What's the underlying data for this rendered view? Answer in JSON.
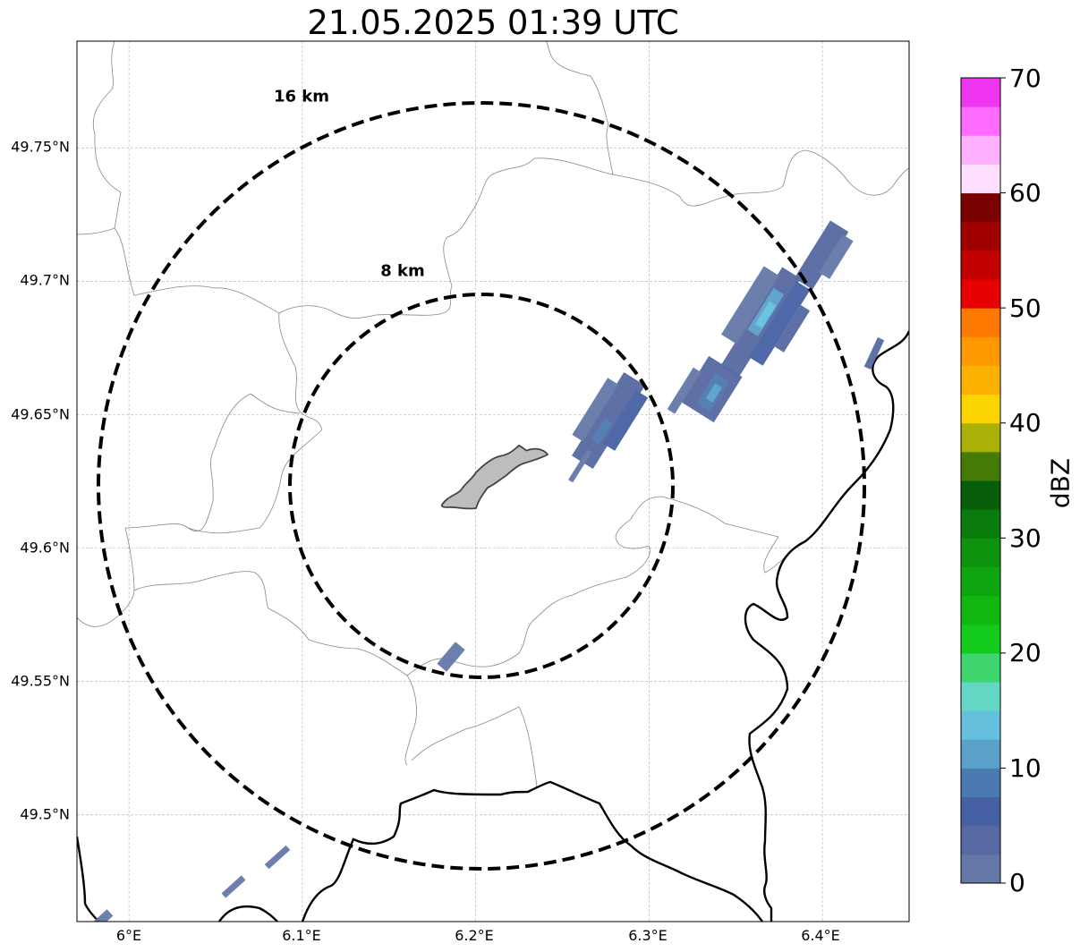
{
  "title": "21.05.2025 01:39 UTC",
  "map": {
    "lon_range": [
      5.97,
      6.45
    ],
    "lat_range": [
      49.46,
      49.79
    ],
    "lon_ticks": [
      {
        "value": 6.0,
        "label": "6°E"
      },
      {
        "value": 6.1,
        "label": "6.1°E"
      },
      {
        "value": 6.2,
        "label": "6.2°E"
      },
      {
        "value": 6.3,
        "label": "6.3°E"
      },
      {
        "value": 6.4,
        "label": "6.4°E"
      }
    ],
    "lat_ticks": [
      {
        "value": 49.5,
        "label": "49.5°N"
      },
      {
        "value": 49.55,
        "label": "49.55°N"
      },
      {
        "value": 49.6,
        "label": "49.6°N"
      },
      {
        "value": 49.65,
        "label": "49.65°N"
      },
      {
        "value": 49.7,
        "label": "49.7°N"
      },
      {
        "value": 49.75,
        "label": "49.75°N"
      }
    ],
    "gridlines": true,
    "range_rings": [
      {
        "label": "8 km",
        "radius_km": 8
      },
      {
        "label": "16 km",
        "radius_km": 16
      }
    ],
    "radar_center": {
      "lon": 6.202,
      "lat": 49.623
    }
  },
  "colorbar": {
    "label": "dBZ",
    "min": 0,
    "max": 70,
    "ticks": [
      "0",
      "10",
      "20",
      "30",
      "40",
      "50",
      "60",
      "70"
    ],
    "colors": [
      "#6578a8",
      "#5769a2",
      "#4660a4",
      "#4b7ab0",
      "#5aa0c9",
      "#65c0de",
      "#64d6c4",
      "#3ed46e",
      "#12cb1a",
      "#10b810",
      "#0fa510",
      "#0d920e",
      "#0a7c0b",
      "#065f08",
      "#457a06",
      "#aab006",
      "#fcd400",
      "#fdb100",
      "#fe9a00",
      "#ff7a00",
      "#e60000",
      "#c20000",
      "#a00000",
      "#7a0000",
      "#ffdfff",
      "#ffb0ff",
      "#ff6cff",
      "#f035f0"
    ]
  },
  "chart_data": {
    "type": "map",
    "title": "21.05.2025 01:39 UTC",
    "colorbar_label": "dBZ",
    "colorbar_range": [
      0,
      70
    ],
    "echo_cells": [
      {
        "lon": 6.362,
        "lat": 49.684,
        "dbz": 10
      },
      {
        "lon": 6.404,
        "lat": 49.705,
        "dbz": 5
      },
      {
        "lon": 6.337,
        "lat": 49.662,
        "dbz": 8
      },
      {
        "lon": 6.277,
        "lat": 49.641,
        "dbz": 5
      },
      {
        "lon": 6.188,
        "lat": 49.557,
        "dbz": 2
      },
      {
        "lon": 6.436,
        "lat": 49.672,
        "dbz": 3
      }
    ]
  }
}
